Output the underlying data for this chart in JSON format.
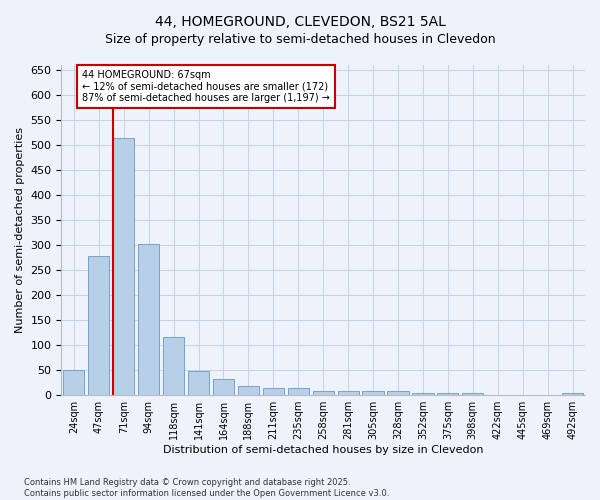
{
  "title": "44, HOMEGROUND, CLEVEDON, BS21 5AL",
  "subtitle": "Size of property relative to semi-detached houses in Clevedon",
  "xlabel": "Distribution of semi-detached houses by size in Clevedon",
  "ylabel": "Number of semi-detached properties",
  "categories": [
    "24sqm",
    "47sqm",
    "71sqm",
    "94sqm",
    "118sqm",
    "141sqm",
    "164sqm",
    "188sqm",
    "211sqm",
    "235sqm",
    "258sqm",
    "281sqm",
    "305sqm",
    "328sqm",
    "352sqm",
    "375sqm",
    "398sqm",
    "422sqm",
    "445sqm",
    "469sqm",
    "492sqm"
  ],
  "values": [
    50,
    278,
    515,
    302,
    117,
    48,
    32,
    18,
    14,
    14,
    9,
    9,
    9,
    9,
    5,
    5,
    5,
    1,
    1,
    1,
    5
  ],
  "bar_color": "#b8cfe8",
  "bar_edgecolor": "#6699cc",
  "vline_color": "#cc0000",
  "annotation_title": "44 HOMEGROUND: 67sqm",
  "annotation_line1": "← 12% of semi-detached houses are smaller (172)",
  "annotation_line2": "87% of semi-detached houses are larger (1,197) →",
  "annotation_box_edgecolor": "#cc0000",
  "annotation_box_facecolor": "#ffffff",
  "ylim": [
    0,
    660
  ],
  "yticks": [
    0,
    50,
    100,
    150,
    200,
    250,
    300,
    350,
    400,
    450,
    500,
    550,
    600,
    650
  ],
  "footer_line1": "Contains HM Land Registry data © Crown copyright and database right 2025.",
  "footer_line2": "Contains public sector information licensed under the Open Government Licence v3.0.",
  "background_color": "#eef2fb",
  "grid_color": "#c8d0e8",
  "title_fontsize": 10,
  "subtitle_fontsize": 9,
  "ylabel_fontsize": 8,
  "xlabel_fontsize": 8,
  "ytick_fontsize": 8,
  "xtick_fontsize": 7,
  "annotation_fontsize": 7,
  "footer_fontsize": 6
}
